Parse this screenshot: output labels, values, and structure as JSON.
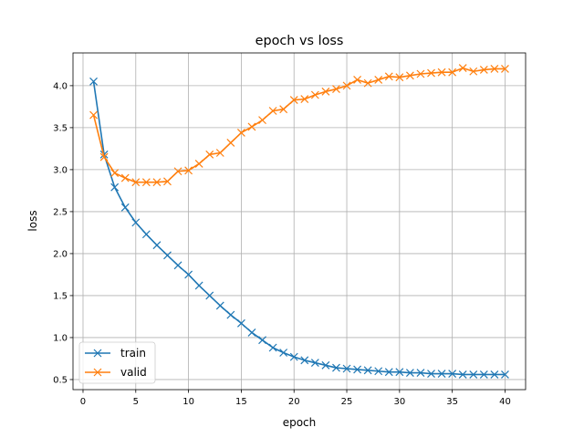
{
  "chart_data": {
    "type": "line",
    "title": "epoch vs loss",
    "xlabel": "epoch",
    "ylabel": "loss",
    "xlim": [
      -0.95,
      41.95
    ],
    "ylim": [
      0.38,
      4.39
    ],
    "xticks": [
      0,
      5,
      10,
      15,
      20,
      25,
      30,
      35,
      40
    ],
    "xtick_labels": [
      "0",
      "5",
      "10",
      "15",
      "20",
      "25",
      "30",
      "35",
      "40"
    ],
    "yticks": [
      0.5,
      1.0,
      1.5,
      2.0,
      2.5,
      3.0,
      3.5,
      4.0
    ],
    "ytick_labels": [
      "0.5",
      "1.0",
      "1.5",
      "2.0",
      "2.5",
      "3.0",
      "3.5",
      "4.0"
    ],
    "grid": true,
    "legend_position": "lower-left",
    "x": [
      1,
      2,
      3,
      4,
      5,
      6,
      7,
      8,
      9,
      10,
      11,
      12,
      13,
      14,
      15,
      16,
      17,
      18,
      19,
      20,
      21,
      22,
      23,
      24,
      25,
      26,
      27,
      28,
      29,
      30,
      31,
      32,
      33,
      34,
      35,
      36,
      37,
      38,
      39,
      40
    ],
    "series": [
      {
        "name": "train",
        "color": "#1f77b4",
        "marker": "x",
        "values": [
          4.05,
          3.18,
          2.79,
          2.55,
          2.37,
          2.23,
          2.1,
          1.98,
          1.86,
          1.75,
          1.62,
          1.5,
          1.38,
          1.27,
          1.17,
          1.06,
          0.97,
          0.88,
          0.82,
          0.77,
          0.73,
          0.7,
          0.67,
          0.64,
          0.63,
          0.62,
          0.61,
          0.6,
          0.59,
          0.59,
          0.58,
          0.58,
          0.57,
          0.57,
          0.57,
          0.56,
          0.56,
          0.56,
          0.56,
          0.56
        ]
      },
      {
        "name": "valid",
        "color": "#ff7f0e",
        "marker": "x",
        "values": [
          3.65,
          3.15,
          2.96,
          2.9,
          2.85,
          2.85,
          2.85,
          2.86,
          2.98,
          2.99,
          3.07,
          3.18,
          3.2,
          3.32,
          3.44,
          3.51,
          3.59,
          3.7,
          3.72,
          3.83,
          3.84,
          3.89,
          3.93,
          3.96,
          4.0,
          4.07,
          4.03,
          4.07,
          4.11,
          4.1,
          4.12,
          4.14,
          4.15,
          4.16,
          4.16,
          4.21,
          4.17,
          4.19,
          4.2,
          4.2
        ]
      }
    ]
  }
}
